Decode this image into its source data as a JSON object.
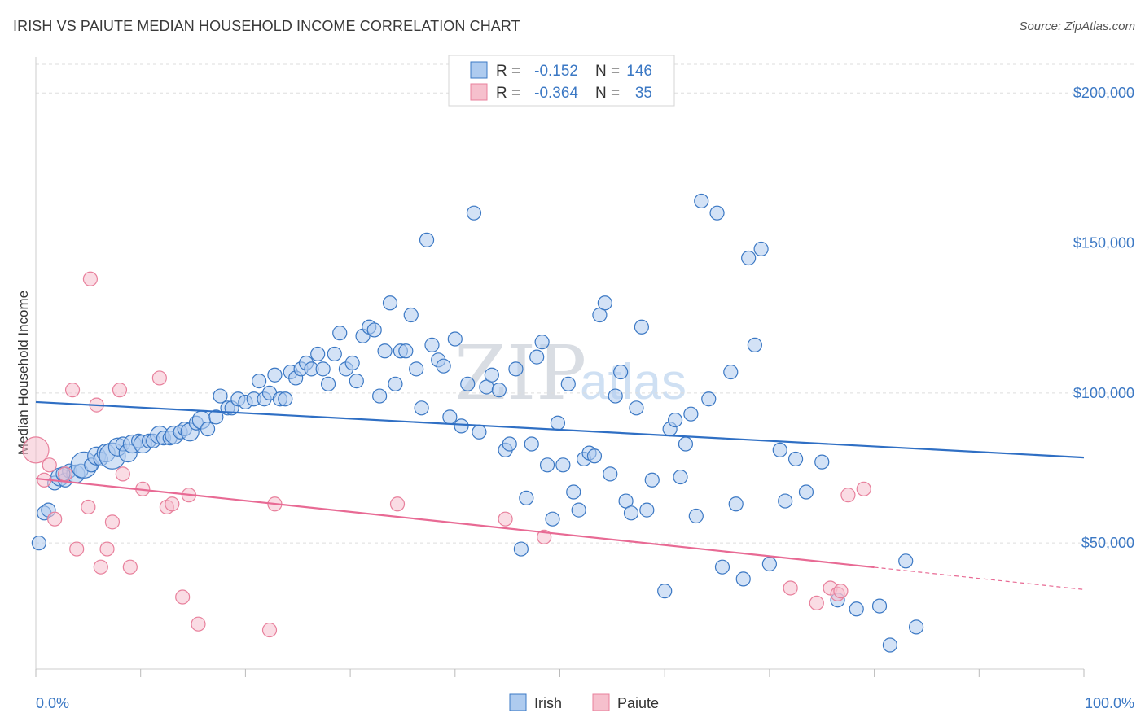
{
  "title": "IRISH VS PAIUTE MEDIAN HOUSEHOLD INCOME CORRELATION CHART",
  "source": "Source: ZipAtlas.com",
  "watermark": {
    "part1": "ZIP",
    "part2": "atlas"
  },
  "colors": {
    "irish_fill": "#aecbef",
    "irish_stroke": "#3b78c4",
    "irish_line": "#2f6fc4",
    "paiute_fill": "#f6c0cd",
    "paiute_stroke": "#e8809c",
    "paiute_line": "#e86a94",
    "axis_text": "#3b78c4",
    "grid": "#dddddd"
  },
  "legend": {
    "rows": [
      {
        "r_label": "R =",
        "r_value": "-0.152",
        "n_label": "N =",
        "n_value": "146"
      },
      {
        "r_label": "R =",
        "r_value": "-0.364",
        "n_label": "N =",
        "n_value": "35"
      }
    ]
  },
  "bottom_legend": [
    "Irish",
    "Paiute"
  ],
  "chart_data": {
    "type": "scatter",
    "ylabel": "Median Household Income",
    "x_tick_labels": [
      "0.0%",
      "100.0%"
    ],
    "y_tick_labels": [
      "$50,000",
      "$100,000",
      "$150,000",
      "$200,000"
    ],
    "y_ticks": [
      50000,
      100000,
      150000,
      200000
    ],
    "xlim": [
      0,
      100
    ],
    "ylim": [
      8000,
      212000
    ],
    "grid": true,
    "legend_position": "top-center",
    "series": [
      {
        "name": "Irish",
        "R": -0.152,
        "N": 146,
        "trend": {
          "x": [
            0,
            100
          ],
          "y": [
            97000,
            78500
          ],
          "solid_until": 100
        },
        "points": [
          [
            0.3,
            50000,
            1
          ],
          [
            0.8,
            60000,
            1
          ],
          [
            1.2,
            61000,
            1
          ],
          [
            1.8,
            70000,
            1
          ],
          [
            2.3,
            72000,
            2
          ],
          [
            2.8,
            71000,
            1
          ],
          [
            3.2,
            74000,
            1
          ],
          [
            3.8,
            73000,
            2
          ],
          [
            4.3,
            74000,
            1
          ],
          [
            4.6,
            76000,
            3
          ],
          [
            5.3,
            76000,
            1
          ],
          [
            5.8,
            79000,
            2
          ],
          [
            6.2,
            78000,
            1
          ],
          [
            6.7,
            80000,
            2
          ],
          [
            7.3,
            79000,
            3
          ],
          [
            7.8,
            82000,
            2
          ],
          [
            8.3,
            83000,
            1
          ],
          [
            8.8,
            80000,
            2
          ],
          [
            9.2,
            83000,
            2
          ],
          [
            9.8,
            84000,
            1
          ],
          [
            10.2,
            83000,
            2
          ],
          [
            10.8,
            84000,
            1
          ],
          [
            11.2,
            84000,
            1
          ],
          [
            11.8,
            86000,
            2
          ],
          [
            12.2,
            85000,
            1
          ],
          [
            12.8,
            85000,
            1
          ],
          [
            13.2,
            86000,
            2
          ],
          [
            13.8,
            87000,
            1
          ],
          [
            14.2,
            88000,
            1
          ],
          [
            14.7,
            87000,
            2
          ],
          [
            15.3,
            90000,
            1
          ],
          [
            15.8,
            91000,
            2
          ],
          [
            16.4,
            88000,
            1
          ],
          [
            17.2,
            92000,
            1
          ],
          [
            17.6,
            99000,
            1
          ],
          [
            18.3,
            95000,
            1
          ],
          [
            18.7,
            95000,
            1
          ],
          [
            19.3,
            98000,
            1
          ],
          [
            20.0,
            97000,
            1
          ],
          [
            20.8,
            98000,
            1
          ],
          [
            21.3,
            104000,
            1
          ],
          [
            21.8,
            98000,
            1
          ],
          [
            22.3,
            100000,
            1
          ],
          [
            22.8,
            106000,
            1
          ],
          [
            23.3,
            98000,
            1
          ],
          [
            23.8,
            98000,
            1
          ],
          [
            24.3,
            107000,
            1
          ],
          [
            24.8,
            105000,
            1
          ],
          [
            25.3,
            108000,
            1
          ],
          [
            25.8,
            110000,
            1
          ],
          [
            26.3,
            108000,
            1
          ],
          [
            26.9,
            113000,
            1
          ],
          [
            27.4,
            108000,
            1
          ],
          [
            27.9,
            103000,
            1
          ],
          [
            28.5,
            113000,
            1
          ],
          [
            29.0,
            120000,
            1
          ],
          [
            29.6,
            108000,
            1
          ],
          [
            30.2,
            110000,
            1
          ],
          [
            30.6,
            104000,
            1
          ],
          [
            31.2,
            119000,
            1
          ],
          [
            31.8,
            122000,
            1
          ],
          [
            32.3,
            121000,
            1
          ],
          [
            32.8,
            99000,
            1
          ],
          [
            33.3,
            114000,
            1
          ],
          [
            33.8,
            130000,
            1
          ],
          [
            34.3,
            103000,
            1
          ],
          [
            34.8,
            114000,
            1
          ],
          [
            35.3,
            114000,
            1
          ],
          [
            35.8,
            126000,
            1
          ],
          [
            36.3,
            108000,
            1
          ],
          [
            36.8,
            95000,
            1
          ],
          [
            37.3,
            151000,
            1
          ],
          [
            37.8,
            116000,
            1
          ],
          [
            38.4,
            111000,
            1
          ],
          [
            38.9,
            109000,
            1
          ],
          [
            39.5,
            92000,
            1
          ],
          [
            40.0,
            118000,
            1
          ],
          [
            40.6,
            89000,
            1
          ],
          [
            41.2,
            103000,
            1
          ],
          [
            41.8,
            160000,
            1
          ],
          [
            42.3,
            87000,
            1
          ],
          [
            43.0,
            102000,
            1
          ],
          [
            43.5,
            106000,
            1
          ],
          [
            44.2,
            101000,
            1
          ],
          [
            44.8,
            81000,
            1
          ],
          [
            45.2,
            83000,
            1
          ],
          [
            45.8,
            108000,
            1
          ],
          [
            46.3,
            48000,
            1
          ],
          [
            46.8,
            65000,
            1
          ],
          [
            47.3,
            83000,
            1
          ],
          [
            47.8,
            112000,
            1
          ],
          [
            48.3,
            117000,
            1
          ],
          [
            48.8,
            76000,
            1
          ],
          [
            49.3,
            58000,
            1
          ],
          [
            49.8,
            90000,
            1
          ],
          [
            50.3,
            76000,
            1
          ],
          [
            50.8,
            103000,
            1
          ],
          [
            51.3,
            67000,
            1
          ],
          [
            51.8,
            61000,
            1
          ],
          [
            52.3,
            78000,
            1
          ],
          [
            52.8,
            80000,
            1
          ],
          [
            53.3,
            79000,
            1
          ],
          [
            53.8,
            126000,
            1
          ],
          [
            54.3,
            130000,
            1
          ],
          [
            54.8,
            73000,
            1
          ],
          [
            55.3,
            99000,
            1
          ],
          [
            55.8,
            107000,
            1
          ],
          [
            56.3,
            64000,
            1
          ],
          [
            56.8,
            60000,
            1
          ],
          [
            57.3,
            95000,
            1
          ],
          [
            57.8,
            122000,
            1
          ],
          [
            58.3,
            61000,
            1
          ],
          [
            58.8,
            71000,
            1
          ],
          [
            60.0,
            34000,
            1
          ],
          [
            60.5,
            88000,
            1
          ],
          [
            61.0,
            91000,
            1
          ],
          [
            61.5,
            72000,
            1
          ],
          [
            62.0,
            83000,
            1
          ],
          [
            62.5,
            93000,
            1
          ],
          [
            63.0,
            59000,
            1
          ],
          [
            63.5,
            164000,
            1
          ],
          [
            64.2,
            98000,
            1
          ],
          [
            65.0,
            160000,
            1
          ],
          [
            65.5,
            42000,
            1
          ],
          [
            66.3,
            107000,
            1
          ],
          [
            66.8,
            63000,
            1
          ],
          [
            67.5,
            38000,
            1
          ],
          [
            68.0,
            145000,
            1
          ],
          [
            68.6,
            116000,
            1
          ],
          [
            69.2,
            148000,
            1
          ],
          [
            70.0,
            43000,
            1
          ],
          [
            71.0,
            81000,
            1
          ],
          [
            71.5,
            64000,
            1
          ],
          [
            72.5,
            78000,
            1
          ],
          [
            73.5,
            67000,
            1
          ],
          [
            75.0,
            77000,
            1
          ],
          [
            76.5,
            31000,
            1
          ],
          [
            78.3,
            28000,
            1
          ],
          [
            80.5,
            29000,
            1
          ],
          [
            81.5,
            16000,
            1
          ],
          [
            83.0,
            44000,
            1
          ],
          [
            84.0,
            22000,
            1
          ],
          [
            2.6,
            73000,
            1
          ]
        ]
      },
      {
        "name": "Paiute",
        "R": -0.364,
        "N": 35,
        "trend": {
          "x": [
            0,
            100
          ],
          "y": [
            71500,
            34500
          ],
          "solid_until": 80
        },
        "points": [
          [
            0.0,
            81000,
            3
          ],
          [
            0.8,
            71000,
            1
          ],
          [
            1.3,
            76000,
            1
          ],
          [
            1.8,
            58000,
            1
          ],
          [
            2.8,
            73000,
            1
          ],
          [
            3.5,
            101000,
            1
          ],
          [
            3.9,
            48000,
            1
          ],
          [
            5.0,
            62000,
            1
          ],
          [
            5.2,
            138000,
            1
          ],
          [
            5.8,
            96000,
            1
          ],
          [
            6.2,
            42000,
            1
          ],
          [
            6.8,
            48000,
            1
          ],
          [
            7.3,
            57000,
            1
          ],
          [
            8.0,
            101000,
            1
          ],
          [
            8.3,
            73000,
            1
          ],
          [
            9.0,
            42000,
            1
          ],
          [
            10.2,
            68000,
            1
          ],
          [
            11.8,
            105000,
            1
          ],
          [
            12.5,
            62000,
            1
          ],
          [
            13.0,
            63000,
            1
          ],
          [
            14.0,
            32000,
            1
          ],
          [
            14.6,
            66000,
            1
          ],
          [
            15.5,
            23000,
            1
          ],
          [
            22.3,
            21000,
            1
          ],
          [
            22.8,
            63000,
            1
          ],
          [
            34.5,
            63000,
            1
          ],
          [
            44.8,
            58000,
            1
          ],
          [
            48.5,
            52000,
            1
          ],
          [
            72.0,
            35000,
            1
          ],
          [
            74.5,
            30000,
            1
          ],
          [
            75.8,
            35000,
            1
          ],
          [
            76.5,
            33000,
            1
          ],
          [
            76.8,
            34000,
            1
          ],
          [
            77.5,
            66000,
            1
          ],
          [
            79.0,
            68000,
            1
          ]
        ]
      }
    ]
  }
}
